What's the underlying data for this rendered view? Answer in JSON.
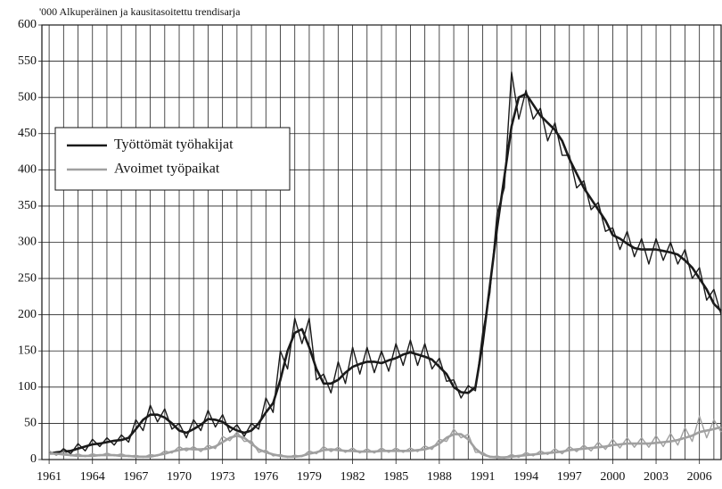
{
  "chart_data": {
    "type": "line",
    "ylabel": "'000 Alkuperäinen ja kausitasoitettu trendisarja",
    "x": [
      1961,
      1961.5,
      1962,
      1962.5,
      1963,
      1963.5,
      1964,
      1964.5,
      1965,
      1965.5,
      1966,
      1966.5,
      1967,
      1967.5,
      1968,
      1968.5,
      1969,
      1969.5,
      1970,
      1970.5,
      1971,
      1971.5,
      1972,
      1972.5,
      1973,
      1973.5,
      1974,
      1974.5,
      1975,
      1975.5,
      1976,
      1976.5,
      1977,
      1977.5,
      1978,
      1978.5,
      1979,
      1979.5,
      1980,
      1980.5,
      1981,
      1981.5,
      1982,
      1982.5,
      1983,
      1983.5,
      1984,
      1984.5,
      1985,
      1985.5,
      1986,
      1986.5,
      1987,
      1987.5,
      1988,
      1988.5,
      1989,
      1989.5,
      1990,
      1990.5,
      1991,
      1991.5,
      1992,
      1992.5,
      1993,
      1993.5,
      1994,
      1994.5,
      1995,
      1995.5,
      1996,
      1996.5,
      1997,
      1997.5,
      1998,
      1998.5,
      1999,
      1999.5,
      2000,
      2000.5,
      2001,
      2001.5,
      2002,
      2002.5,
      2003,
      2003.5,
      2004,
      2004.5,
      2005,
      2005.5,
      2006,
      2006.5,
      2007,
      2007.5
    ],
    "series": [
      {
        "name": "Työttömät työhakijat",
        "color": "#1a1a1a",
        "values": [
          12,
          6,
          15,
          8,
          22,
          12,
          28,
          18,
          30,
          20,
          34,
          24,
          55,
          40,
          75,
          52,
          70,
          42,
          50,
          30,
          55,
          40,
          68,
          45,
          62,
          38,
          48,
          32,
          50,
          42,
          85,
          65,
          150,
          125,
          195,
          160,
          195,
          110,
          118,
          92,
          135,
          105,
          155,
          118,
          155,
          120,
          150,
          122,
          160,
          130,
          165,
          130,
          160,
          125,
          140,
          108,
          110,
          85,
          102,
          95,
          175,
          230,
          340,
          375,
          535,
          470,
          510,
          470,
          485,
          440,
          465,
          420,
          420,
          375,
          385,
          345,
          355,
          315,
          320,
          290,
          315,
          280,
          305,
          270,
          305,
          275,
          300,
          270,
          290,
          250,
          265,
          220,
          235,
          200
        ],
        "trend": [
          8,
          10,
          11,
          12,
          15,
          18,
          21,
          22,
          24,
          26,
          27,
          30,
          42,
          55,
          62,
          62,
          58,
          50,
          40,
          37,
          42,
          48,
          56,
          55,
          52,
          45,
          40,
          37,
          40,
          50,
          65,
          78,
          110,
          150,
          175,
          180,
          155,
          125,
          105,
          105,
          110,
          120,
          128,
          132,
          135,
          135,
          133,
          137,
          140,
          145,
          148,
          145,
          142,
          138,
          128,
          118,
          100,
          93,
          92,
          100,
          160,
          240,
          320,
          390,
          460,
          500,
          505,
          490,
          475,
          465,
          455,
          440,
          415,
          395,
          375,
          360,
          345,
          330,
          310,
          305,
          298,
          292,
          290,
          290,
          290,
          288,
          286,
          283,
          275,
          265,
          250,
          235,
          215,
          205
        ]
      },
      {
        "name": "Avoimet työpaikat",
        "color": "#a0a0a0",
        "values": [
          12,
          6,
          11,
          5,
          8,
          4,
          8,
          5,
          9,
          5,
          8,
          4,
          6,
          3,
          7,
          5,
          12,
          9,
          18,
          12,
          18,
          11,
          20,
          15,
          32,
          26,
          38,
          25,
          26,
          10,
          13,
          5,
          7,
          3,
          6,
          4,
          12,
          8,
          18,
          11,
          17,
          10,
          16,
          9,
          15,
          9,
          16,
          10,
          16,
          10,
          16,
          11,
          19,
          14,
          28,
          25,
          42,
          30,
          35,
          10,
          10,
          3,
          5,
          2,
          7,
          3,
          10,
          5,
          12,
          7,
          15,
          8,
          18,
          11,
          20,
          12,
          24,
          14,
          28,
          16,
          30,
          17,
          30,
          17,
          33,
          18,
          36,
          20,
          44,
          25,
          60,
          30,
          55,
          38
        ],
        "trend": [
          8,
          8,
          7,
          6,
          5,
          5,
          5,
          6,
          6,
          6,
          5,
          5,
          4,
          4,
          4,
          6,
          8,
          11,
          13,
          15,
          14,
          14,
          15,
          18,
          24,
          30,
          33,
          30,
          22,
          14,
          10,
          7,
          5,
          4,
          4,
          5,
          8,
          10,
          13,
          14,
          13,
          12,
          12,
          11,
          11,
          11,
          12,
          12,
          12,
          12,
          12,
          13,
          14,
          17,
          22,
          30,
          35,
          35,
          28,
          15,
          7,
          4,
          3,
          3,
          4,
          5,
          6,
          7,
          8,
          9,
          10,
          11,
          13,
          14,
          15,
          16,
          17,
          18,
          20,
          21,
          22,
          22,
          22,
          22,
          23,
          24,
          25,
          27,
          30,
          33,
          38,
          40,
          42,
          45
        ]
      }
    ],
    "xlim": [
      1960.5,
      2007.5
    ],
    "xticks": [
      1961,
      1964,
      1967,
      1970,
      1973,
      1976,
      1979,
      1982,
      1985,
      1988,
      1991,
      1994,
      1997,
      2000,
      2003,
      2006
    ],
    "xgrid_step": 1,
    "ylim": [
      0,
      600
    ],
    "yticks": [
      0,
      50,
      100,
      150,
      200,
      250,
      300,
      350,
      400,
      450,
      500,
      550,
      600
    ],
    "grid": true,
    "legend": "upper left"
  }
}
